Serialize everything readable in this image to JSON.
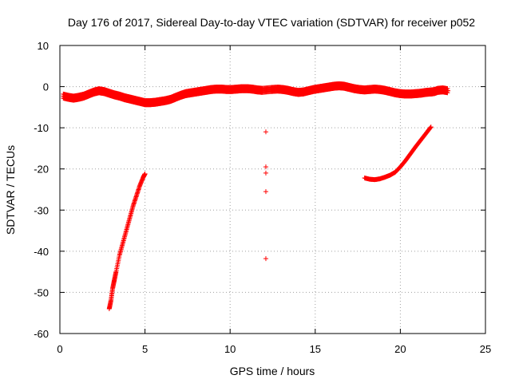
{
  "chart_data": {
    "type": "scatter",
    "title": "Day 176 of 2017, Sidereal Day-to-day VTEC variation (SDTVAR) for receiver p052",
    "xlabel": "GPS time / hours",
    "ylabel": "SDTVAR / TECUs",
    "xlim": [
      0,
      25
    ],
    "ylim": [
      -60,
      10
    ],
    "xticks": [
      0,
      5,
      10,
      15,
      20,
      25
    ],
    "yticks": [
      10,
      0,
      -10,
      -20,
      -30,
      -40,
      -50,
      -60
    ],
    "grid": true,
    "marker": "+",
    "color": "#ff0000",
    "series": [
      {
        "name": "main-band",
        "points": [
          [
            0.2,
            -2.3
          ],
          [
            0.5,
            -2.6
          ],
          [
            0.8,
            -2.8
          ],
          [
            1.1,
            -2.6
          ],
          [
            1.4,
            -2.3
          ],
          [
            1.7,
            -1.8
          ],
          [
            2.0,
            -1.3
          ],
          [
            2.3,
            -1.0
          ],
          [
            2.6,
            -1.2
          ],
          [
            2.9,
            -1.6
          ],
          [
            3.2,
            -2.0
          ],
          [
            3.5,
            -2.3
          ],
          [
            3.8,
            -2.7
          ],
          [
            4.1,
            -3.0
          ],
          [
            4.4,
            -3.3
          ],
          [
            4.7,
            -3.6
          ],
          [
            5.0,
            -3.9
          ],
          [
            5.3,
            -3.9
          ],
          [
            5.6,
            -3.8
          ],
          [
            5.9,
            -3.6
          ],
          [
            6.2,
            -3.4
          ],
          [
            6.5,
            -3.1
          ],
          [
            6.8,
            -2.6
          ],
          [
            7.1,
            -2.1
          ],
          [
            7.4,
            -1.7
          ],
          [
            7.7,
            -1.5
          ],
          [
            8.0,
            -1.3
          ],
          [
            8.3,
            -1.1
          ],
          [
            8.6,
            -0.9
          ],
          [
            8.9,
            -0.7
          ],
          [
            9.2,
            -0.6
          ],
          [
            9.5,
            -0.6
          ],
          [
            9.8,
            -0.7
          ],
          [
            10.1,
            -0.7
          ],
          [
            10.4,
            -0.6
          ],
          [
            10.7,
            -0.5
          ],
          [
            11.0,
            -0.5
          ],
          [
            11.3,
            -0.6
          ],
          [
            11.6,
            -0.8
          ],
          [
            11.9,
            -0.9
          ],
          [
            12.4,
            -0.7
          ],
          [
            12.8,
            -0.6
          ],
          [
            13.1,
            -0.7
          ],
          [
            13.4,
            -0.9
          ],
          [
            13.7,
            -1.2
          ],
          [
            14.0,
            -1.4
          ],
          [
            14.3,
            -1.3
          ],
          [
            14.6,
            -1.0
          ],
          [
            14.9,
            -0.7
          ],
          [
            15.2,
            -0.5
          ],
          [
            15.5,
            -0.3
          ],
          [
            15.8,
            -0.1
          ],
          [
            16.1,
            0.1
          ],
          [
            16.4,
            0.2
          ],
          [
            16.7,
            0.1
          ],
          [
            17.0,
            -0.2
          ],
          [
            17.3,
            -0.5
          ],
          [
            17.6,
            -0.7
          ],
          [
            17.9,
            -0.8
          ],
          [
            18.2,
            -0.7
          ],
          [
            18.5,
            -0.6
          ],
          [
            18.8,
            -0.7
          ],
          [
            19.1,
            -0.9
          ],
          [
            19.4,
            -1.2
          ],
          [
            19.7,
            -1.5
          ],
          [
            20.0,
            -1.7
          ],
          [
            20.3,
            -1.8
          ],
          [
            20.6,
            -1.8
          ],
          [
            20.9,
            -1.7
          ],
          [
            21.2,
            -1.6
          ],
          [
            21.5,
            -1.4
          ],
          [
            21.8,
            -1.3
          ],
          [
            22.0,
            -1.2
          ],
          [
            22.2,
            -0.9
          ],
          [
            22.5,
            -0.8
          ],
          [
            22.8,
            -1.0
          ]
        ]
      },
      {
        "name": "descending-segment",
        "points": [
          [
            2.9,
            -54
          ],
          [
            3.0,
            -52
          ],
          [
            3.1,
            -49
          ],
          [
            3.2,
            -47
          ],
          [
            3.3,
            -45
          ],
          [
            3.5,
            -41
          ],
          [
            3.7,
            -38
          ],
          [
            3.9,
            -35
          ],
          [
            4.1,
            -32
          ],
          [
            4.3,
            -29
          ],
          [
            4.5,
            -26.5
          ],
          [
            4.7,
            -24
          ],
          [
            4.9,
            -22
          ],
          [
            5.0,
            -21.2
          ]
        ]
      },
      {
        "name": "isolated-points",
        "points": [
          [
            12.1,
            -11
          ],
          [
            12.1,
            -19.5
          ],
          [
            12.1,
            -21
          ],
          [
            12.1,
            -25.5
          ],
          [
            12.1,
            -41.8
          ]
        ]
      },
      {
        "name": "rising-segment",
        "points": [
          [
            17.9,
            -22.2
          ],
          [
            18.2,
            -22.5
          ],
          [
            18.5,
            -22.6
          ],
          [
            18.8,
            -22.4
          ],
          [
            19.1,
            -22.0
          ],
          [
            19.4,
            -21.5
          ],
          [
            19.7,
            -20.8
          ],
          [
            20.0,
            -19.5
          ],
          [
            20.3,
            -18.0
          ],
          [
            20.6,
            -16.3
          ],
          [
            20.9,
            -14.6
          ],
          [
            21.2,
            -13.0
          ],
          [
            21.5,
            -11.4
          ],
          [
            21.8,
            -9.8
          ]
        ]
      }
    ]
  }
}
